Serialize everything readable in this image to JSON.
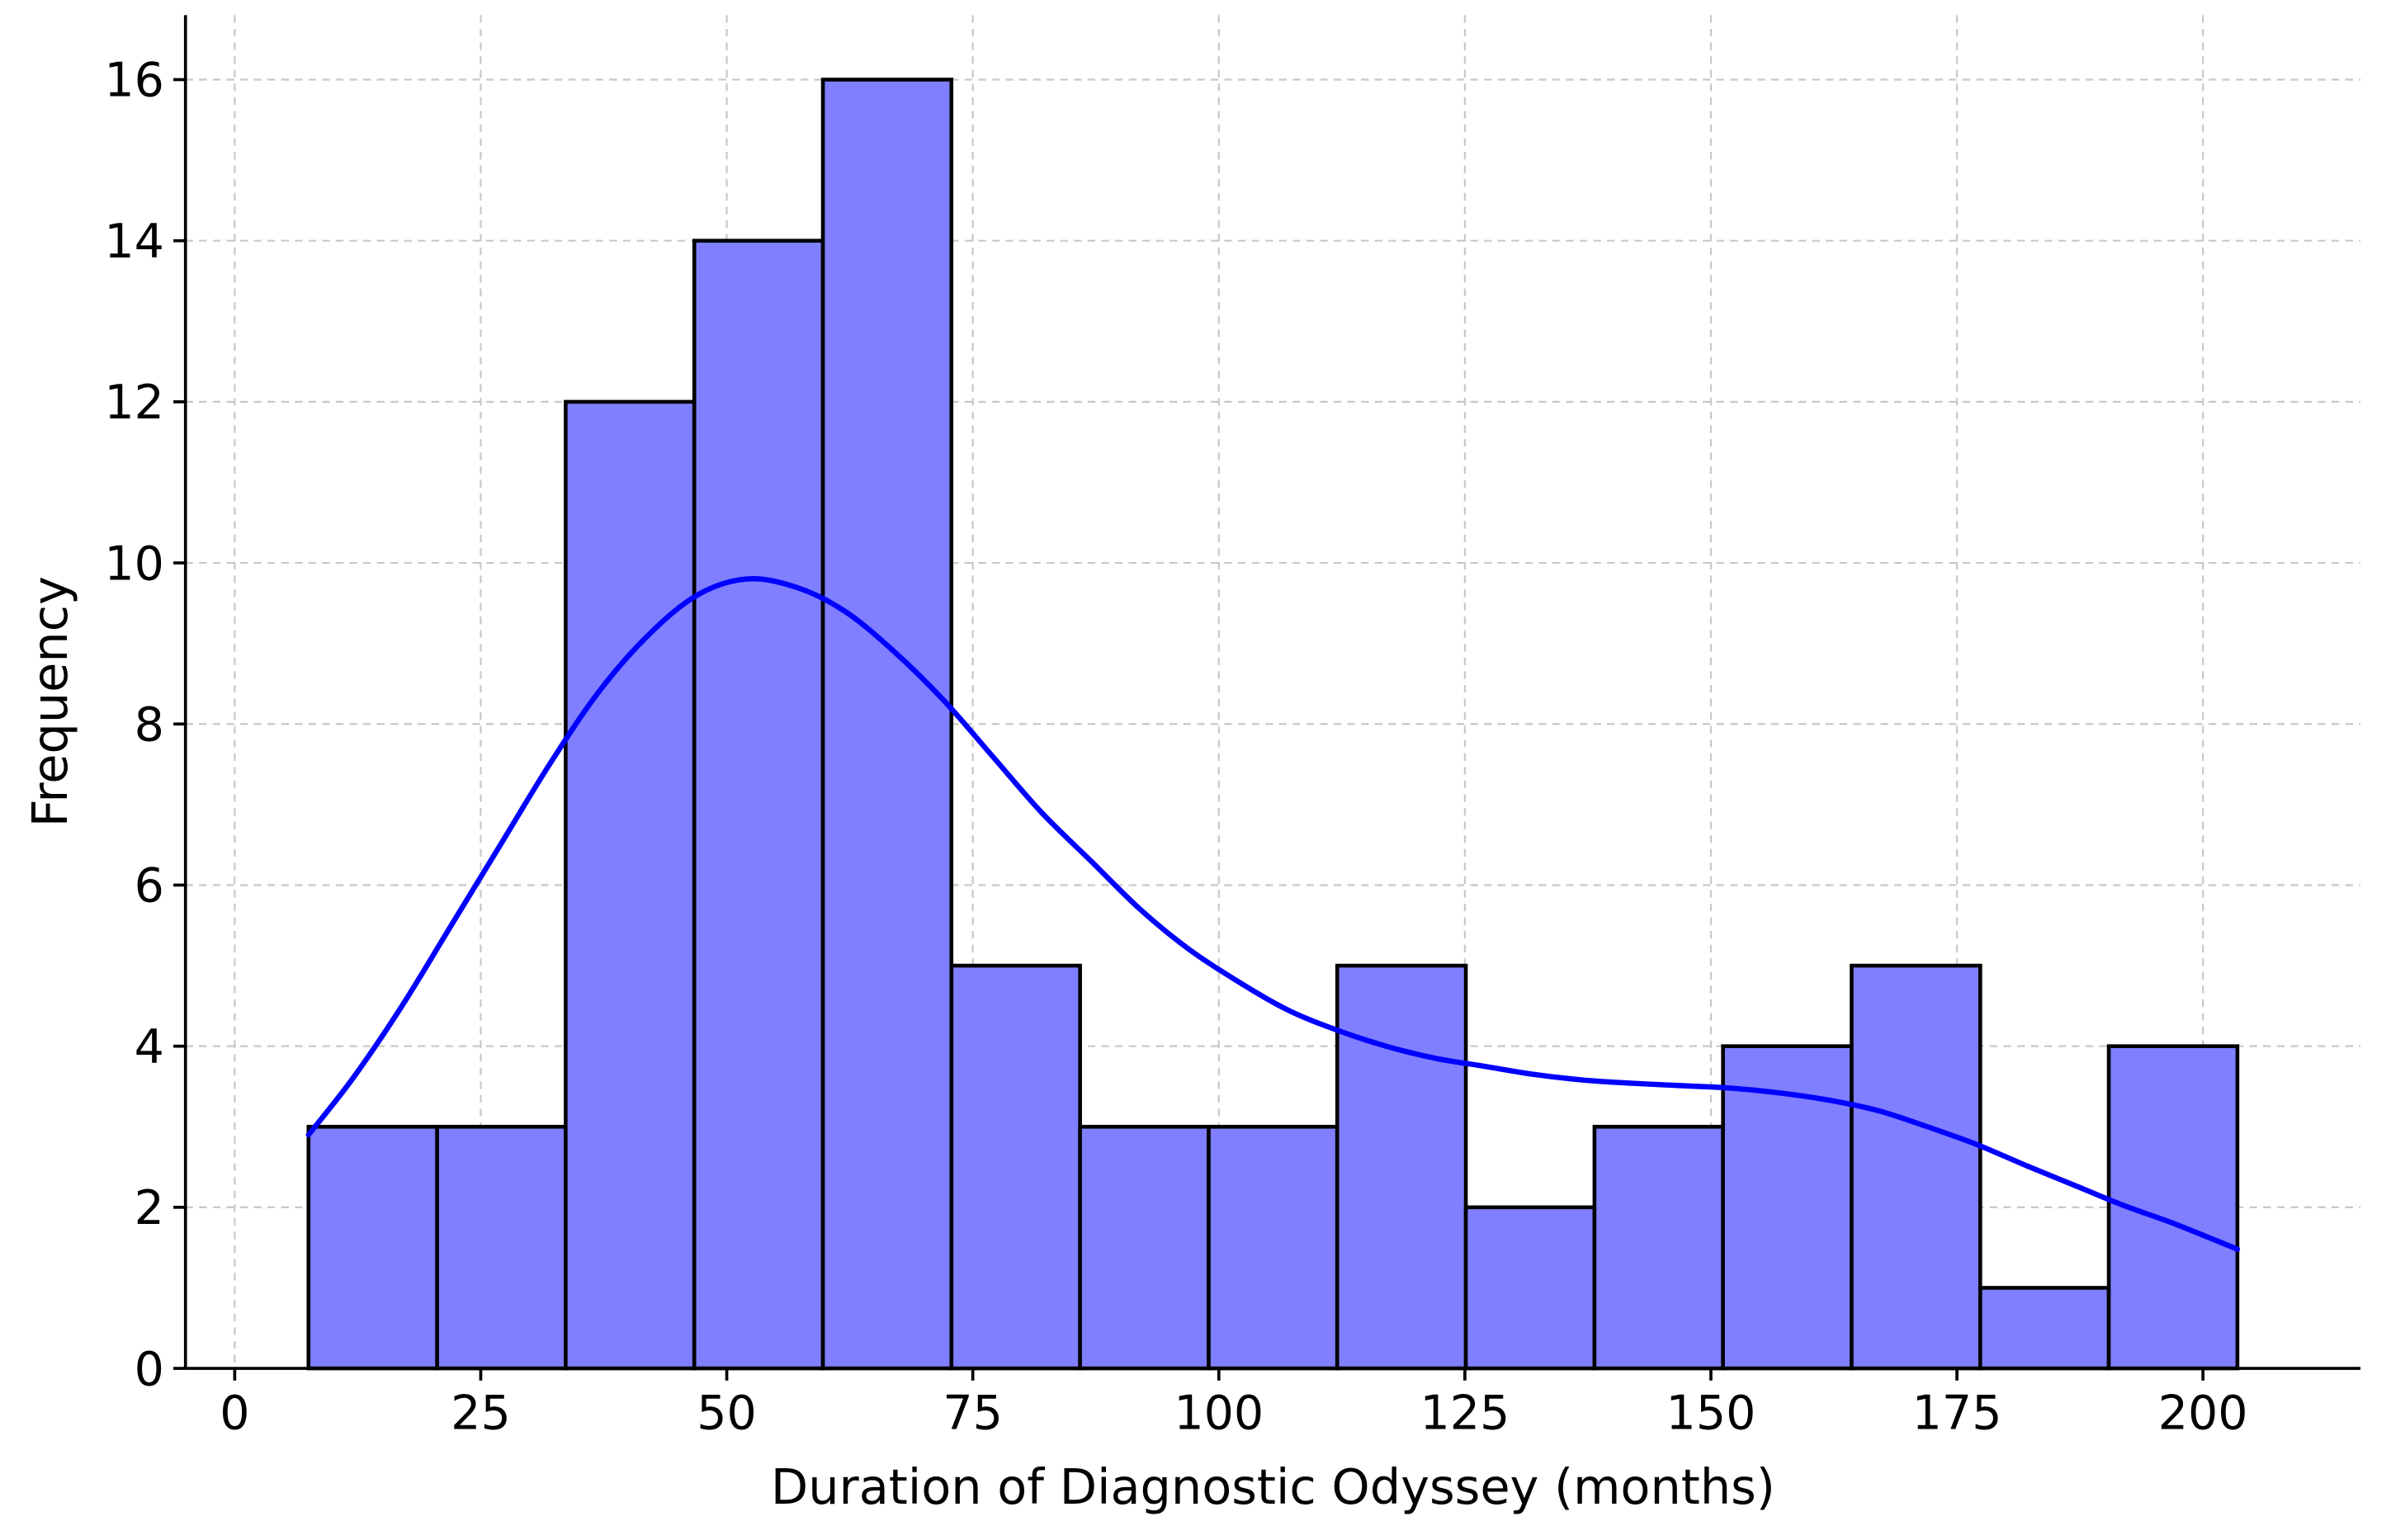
{
  "chart_data": {
    "type": "bar",
    "title": "",
    "xlabel": "Duration of Diagnostic Odyssey (months)",
    "ylabel": "Frequency",
    "xlim": [
      -5,
      216
    ],
    "ylim": [
      0,
      16.8
    ],
    "xticks": [
      0,
      25,
      50,
      75,
      100,
      125,
      150,
      175,
      200
    ],
    "yticks": [
      0,
      2,
      4,
      6,
      8,
      10,
      12,
      14,
      16
    ],
    "grid": true,
    "bins": {
      "edges": [
        7.5,
        20.57,
        33.63,
        46.7,
        59.77,
        72.83,
        85.9,
        98.97,
        112.03,
        125.1,
        138.17,
        151.23,
        164.3,
        177.37,
        190.43,
        203.5
      ],
      "counts": [
        3,
        3,
        12,
        14,
        16,
        5,
        3,
        3,
        5,
        2,
        3,
        4,
        5,
        1,
        4
      ]
    },
    "kde": {
      "x": [
        7.5,
        12,
        17,
        22,
        27,
        32,
        37,
        42,
        47,
        52,
        57,
        62,
        67,
        72,
        77,
        82,
        87,
        92,
        97,
        102,
        107,
        112,
        117,
        122,
        127,
        132,
        137,
        142,
        147,
        152,
        157,
        162,
        167,
        172,
        177,
        182,
        187,
        192,
        197,
        203.5
      ],
      "y": [
        2.9,
        3.6,
        4.5,
        5.5,
        6.5,
        7.5,
        8.4,
        9.1,
        9.6,
        9.8,
        9.7,
        9.4,
        8.9,
        8.3,
        7.6,
        6.9,
        6.3,
        5.7,
        5.2,
        4.8,
        4.45,
        4.2,
        4.0,
        3.85,
        3.75,
        3.65,
        3.58,
        3.54,
        3.51,
        3.48,
        3.42,
        3.33,
        3.2,
        3.0,
        2.78,
        2.52,
        2.27,
        2.02,
        1.8,
        1.48
      ]
    },
    "colors": {
      "bar_fill": "#7f7fff",
      "bar_edge": "#000000",
      "kde_line": "#0000ff",
      "grid": "#c8c8c8",
      "axis": "#000000"
    }
  }
}
